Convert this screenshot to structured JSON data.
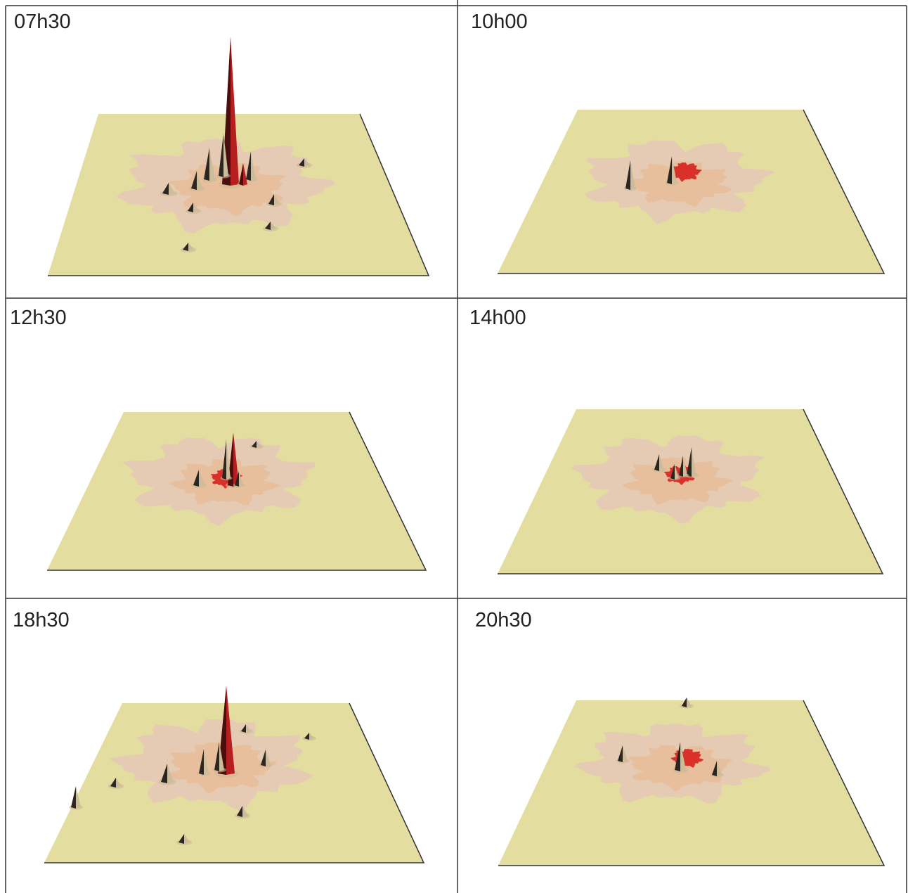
{
  "panels": [
    {
      "label": "07h30"
    },
    {
      "label": "10h00"
    },
    {
      "label": "12h30"
    },
    {
      "label": "14h00"
    },
    {
      "label": "18h30"
    },
    {
      "label": "20h30"
    }
  ]
}
